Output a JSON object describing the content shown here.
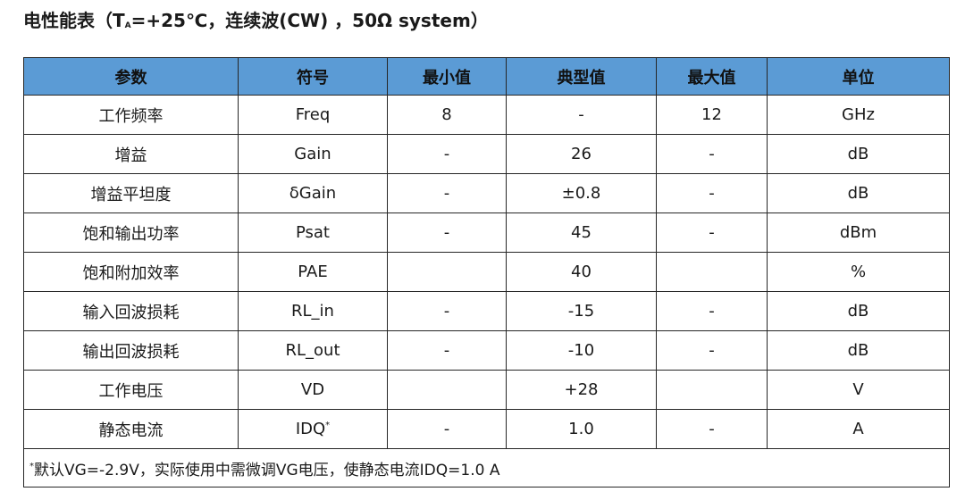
{
  "title": {
    "prefix": "电性能表（T",
    "sub": "A",
    "suffix": "=+25℃，连续波(CW) ，50Ω system）"
  },
  "table": {
    "headers": [
      "参数",
      "符号",
      "最小值",
      "典型值",
      "最大值",
      "单位"
    ],
    "rows": [
      {
        "param": "工作频率",
        "symbol": "Freq",
        "min": "8",
        "typ": "-",
        "max": "12",
        "unit": "GHz"
      },
      {
        "param": "增益",
        "symbol": "Gain",
        "min": "-",
        "typ": "26",
        "max": "-",
        "unit": "dB"
      },
      {
        "param": "增益平坦度",
        "symbol": "δGain",
        "min": "-",
        "typ": "±0.8",
        "max": "-",
        "unit": "dB"
      },
      {
        "param": "饱和输出功率",
        "symbol": "Psat",
        "min": "-",
        "typ": "45",
        "max": "-",
        "unit": "dBm"
      },
      {
        "param": "饱和附加效率",
        "symbol": "PAE",
        "min": "",
        "typ": "40",
        "max": "",
        "unit": "%"
      },
      {
        "param": "输入回波损耗",
        "symbol": "RL_in",
        "min": "-",
        "typ": "-15",
        "max": "-",
        "unit": "dB"
      },
      {
        "param": "输出回波损耗",
        "symbol": "RL_out",
        "min": "-",
        "typ": "-10",
        "max": "-",
        "unit": "dB"
      },
      {
        "param": "工作电压",
        "symbol": "VD",
        "min": "",
        "typ": "+28",
        "max": "",
        "unit": "V"
      },
      {
        "param": "静态电流",
        "symbol": "IDQ",
        "symbol_sup": "*",
        "min": "-",
        "typ": "1.0",
        "max": "-",
        "unit": "A"
      }
    ],
    "note": {
      "sup": "*",
      "text": "默认VG=-2.9V，实际使用中需微调VG电压，使静态电流IDQ=1.0 A"
    }
  }
}
